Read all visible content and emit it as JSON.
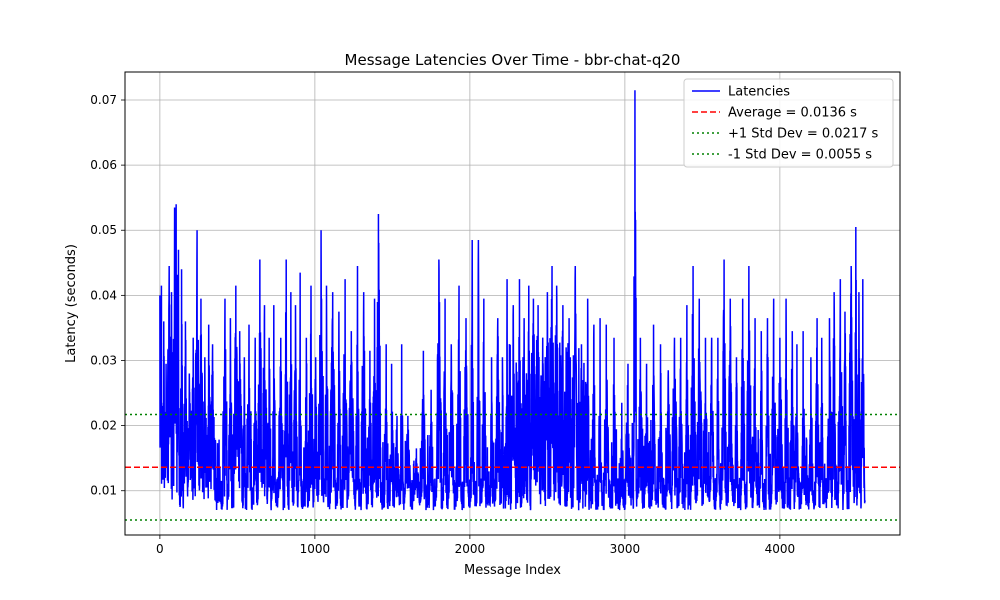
{
  "chart_data": {
    "type": "line",
    "title": "Message Latencies Over Time - bbr-chat-q20",
    "xlabel": "Message Index",
    "ylabel": "Latency (seconds)",
    "xlim": [
      -225,
      4775
    ],
    "ylim": [
      0.0032,
      0.0743
    ],
    "xticks": [
      0,
      1000,
      2000,
      3000,
      4000
    ],
    "xtick_labels": [
      "0",
      "1000",
      "2000",
      "3000",
      "4000"
    ],
    "yticks": [
      0.01,
      0.02,
      0.03,
      0.04,
      0.05,
      0.06,
      0.07
    ],
    "ytick_labels": [
      "0.01",
      "0.02",
      "0.03",
      "0.04",
      "0.05",
      "0.06",
      "0.07"
    ],
    "grid": true,
    "legend_position": "top-right",
    "n_points": 4550,
    "series": [
      {
        "name": "Latencies",
        "color": "#0000ff",
        "style": "solid",
        "baseline": 0.0095,
        "min": 0.0065,
        "spikes": [
          [
            0,
            0.04
          ],
          [
            10,
            0.0415
          ],
          [
            25,
            0.036
          ],
          [
            40,
            0.0295
          ],
          [
            60,
            0.0445
          ],
          [
            75,
            0.0405
          ],
          [
            95,
            0.0535
          ],
          [
            105,
            0.054
          ],
          [
            120,
            0.047
          ],
          [
            140,
            0.044
          ],
          [
            165,
            0.036
          ],
          [
            190,
            0.028
          ],
          [
            215,
            0.0335
          ],
          [
            240,
            0.05
          ],
          [
            265,
            0.0395
          ],
          [
            290,
            0.0305
          ],
          [
            315,
            0.0355
          ],
          [
            340,
            0.0325
          ],
          [
            420,
            0.0395
          ],
          [
            455,
            0.0365
          ],
          [
            490,
            0.0415
          ],
          [
            515,
            0.0345
          ],
          [
            545,
            0.0305
          ],
          [
            575,
            0.0355
          ],
          [
            615,
            0.0335
          ],
          [
            645,
            0.0455
          ],
          [
            675,
            0.0385
          ],
          [
            705,
            0.0335
          ],
          [
            735,
            0.0385
          ],
          [
            780,
            0.0335
          ],
          [
            815,
            0.0455
          ],
          [
            845,
            0.0405
          ],
          [
            875,
            0.0385
          ],
          [
            905,
            0.0435
          ],
          [
            945,
            0.0335
          ],
          [
            975,
            0.0415
          ],
          [
            1005,
            0.0305
          ],
          [
            1040,
            0.05
          ],
          [
            1075,
            0.0415
          ],
          [
            1115,
            0.0405
          ],
          [
            1155,
            0.0375
          ],
          [
            1195,
            0.0425
          ],
          [
            1235,
            0.0345
          ],
          [
            1275,
            0.0445
          ],
          [
            1315,
            0.0405
          ],
          [
            1355,
            0.0315
          ],
          [
            1385,
            0.0395
          ],
          [
            1410,
            0.0525
          ],
          [
            1460,
            0.0325
          ],
          [
            1495,
            0.0295
          ],
          [
            1530,
            0.0215
          ],
          [
            1560,
            0.0325
          ],
          [
            1600,
            0.0215
          ],
          [
            1655,
            0.0165
          ],
          [
            1700,
            0.0315
          ],
          [
            1750,
            0.0255
          ],
          [
            1800,
            0.0455
          ],
          [
            1840,
            0.0395
          ],
          [
            1880,
            0.0325
          ],
          [
            1930,
            0.0415
          ],
          [
            1975,
            0.0365
          ],
          [
            2015,
            0.0485
          ],
          [
            2055,
            0.0485
          ],
          [
            2090,
            0.0395
          ],
          [
            2140,
            0.0305
          ],
          [
            2180,
            0.0365
          ],
          [
            2210,
            0.0305
          ],
          [
            2240,
            0.0425
          ],
          [
            2280,
            0.0385
          ],
          [
            2320,
            0.0425
          ],
          [
            2350,
            0.0365
          ],
          [
            2380,
            0.0415
          ],
          [
            2410,
            0.0395
          ],
          [
            2440,
            0.0385
          ],
          [
            2470,
            0.0335
          ],
          [
            2500,
            0.0405
          ],
          [
            2530,
            0.0445
          ],
          [
            2560,
            0.0415
          ],
          [
            2600,
            0.0385
          ],
          [
            2640,
            0.0365
          ],
          [
            2680,
            0.0445
          ],
          [
            2720,
            0.0325
          ],
          [
            2760,
            0.0395
          ],
          [
            2800,
            0.0355
          ],
          [
            2840,
            0.0365
          ],
          [
            2880,
            0.0355
          ],
          [
            2930,
            0.0335
          ],
          [
            2980,
            0.0235
          ],
          [
            3020,
            0.0295
          ],
          [
            3065,
            0.0715
          ],
          [
            3100,
            0.0335
          ],
          [
            3140,
            0.0295
          ],
          [
            3185,
            0.0355
          ],
          [
            3230,
            0.0325
          ],
          [
            3280,
            0.0285
          ],
          [
            3320,
            0.0335
          ],
          [
            3360,
            0.0335
          ],
          [
            3400,
            0.0385
          ],
          [
            3440,
            0.0445
          ],
          [
            3480,
            0.0395
          ],
          [
            3520,
            0.0335
          ],
          [
            3560,
            0.0335
          ],
          [
            3600,
            0.0335
          ],
          [
            3640,
            0.0455
          ],
          [
            3680,
            0.0395
          ],
          [
            3720,
            0.0305
          ],
          [
            3760,
            0.0395
          ],
          [
            3800,
            0.0445
          ],
          [
            3840,
            0.0365
          ],
          [
            3880,
            0.0345
          ],
          [
            3920,
            0.0365
          ],
          [
            3960,
            0.0395
          ],
          [
            4000,
            0.0335
          ],
          [
            4040,
            0.0395
          ],
          [
            4080,
            0.0345
          ],
          [
            4110,
            0.0325
          ],
          [
            4150,
            0.0345
          ],
          [
            4200,
            0.0305
          ],
          [
            4240,
            0.0365
          ],
          [
            4270,
            0.0335
          ],
          [
            4320,
            0.0365
          ],
          [
            4350,
            0.0405
          ],
          [
            4390,
            0.0425
          ],
          [
            4420,
            0.0375
          ],
          [
            4460,
            0.0445
          ],
          [
            4490,
            0.0505
          ],
          [
            4510,
            0.0405
          ],
          [
            4535,
            0.0425
          ]
        ]
      },
      {
        "name": "Average = 0.0136 s",
        "color": "#ff0000",
        "style": "dashed",
        "value": 0.0136
      },
      {
        "name": "+1 Std Dev = 0.0217 s",
        "color": "#008000",
        "style": "dotted",
        "value": 0.0217
      },
      {
        "name": "-1 Std Dev = 0.0055 s",
        "color": "#008000",
        "style": "dotted",
        "value": 0.0055
      }
    ]
  }
}
